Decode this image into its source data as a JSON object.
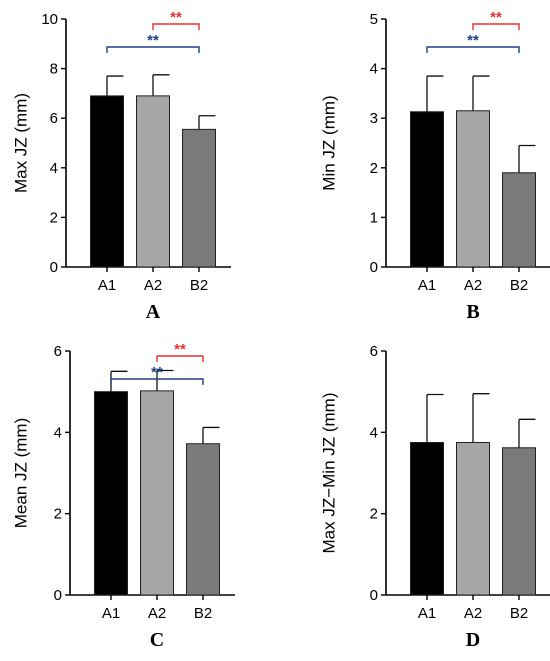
{
  "colors": {
    "bars": [
      "#000000",
      "#a6a6a6",
      "#7a7a7a"
    ],
    "bar_stroke": "#222222",
    "sig_blue": "#1f3f86",
    "sig_red": "#e8302f"
  },
  "chart_data": [
    {
      "panel": "A",
      "type": "bar",
      "categories": [
        "A1",
        "A2",
        "B2"
      ],
      "values": [
        6.9,
        6.9,
        5.55
      ],
      "errors": [
        0.8,
        0.85,
        0.55
      ],
      "ylabel": "Max JZ (mm)",
      "ylim": [
        0,
        10
      ],
      "yticks": [
        "0",
        "2",
        "4",
        "6",
        "8",
        "10"
      ],
      "comparisons": [
        {
          "from": 0,
          "to": 2,
          "label": "**",
          "color": "blue"
        },
        {
          "from": 1,
          "to": 2,
          "label": "**",
          "color": "red"
        }
      ]
    },
    {
      "panel": "B",
      "type": "bar",
      "categories": [
        "A1",
        "A2",
        "B2"
      ],
      "values": [
        3.13,
        3.15,
        1.9
      ],
      "errors": [
        0.72,
        0.7,
        0.55
      ],
      "ylabel": "Min JZ (mm)",
      "ylim": [
        0,
        5
      ],
      "yticks": [
        "0",
        "1",
        "2",
        "3",
        "4",
        "5"
      ],
      "comparisons": [
        {
          "from": 0,
          "to": 2,
          "label": "**",
          "color": "blue"
        },
        {
          "from": 1,
          "to": 2,
          "label": "**",
          "color": "red"
        }
      ]
    },
    {
      "panel": "C",
      "type": "bar",
      "categories": [
        "A1",
        "A2",
        "B2"
      ],
      "values": [
        5.0,
        5.02,
        3.72
      ],
      "errors": [
        0.5,
        0.5,
        0.4
      ],
      "ylabel": "Mean JZ (mm)",
      "ylim": [
        0,
        6
      ],
      "yticks": [
        "0",
        "2",
        "4",
        "6"
      ],
      "comparisons": [
        {
          "from": 0,
          "to": 2,
          "label": "**",
          "color": "blue"
        },
        {
          "from": 1,
          "to": 2,
          "label": "**",
          "color": "red"
        }
      ]
    },
    {
      "panel": "D",
      "type": "bar",
      "categories": [
        "A1",
        "A2",
        "B2"
      ],
      "values": [
        3.75,
        3.75,
        3.62
      ],
      "errors": [
        1.18,
        1.2,
        0.7
      ],
      "ylabel": "Max JZ−Min JZ (mm)",
      "ylim": [
        0,
        6
      ],
      "yticks": [
        "0",
        "2",
        "4",
        "6"
      ],
      "comparisons": []
    }
  ]
}
